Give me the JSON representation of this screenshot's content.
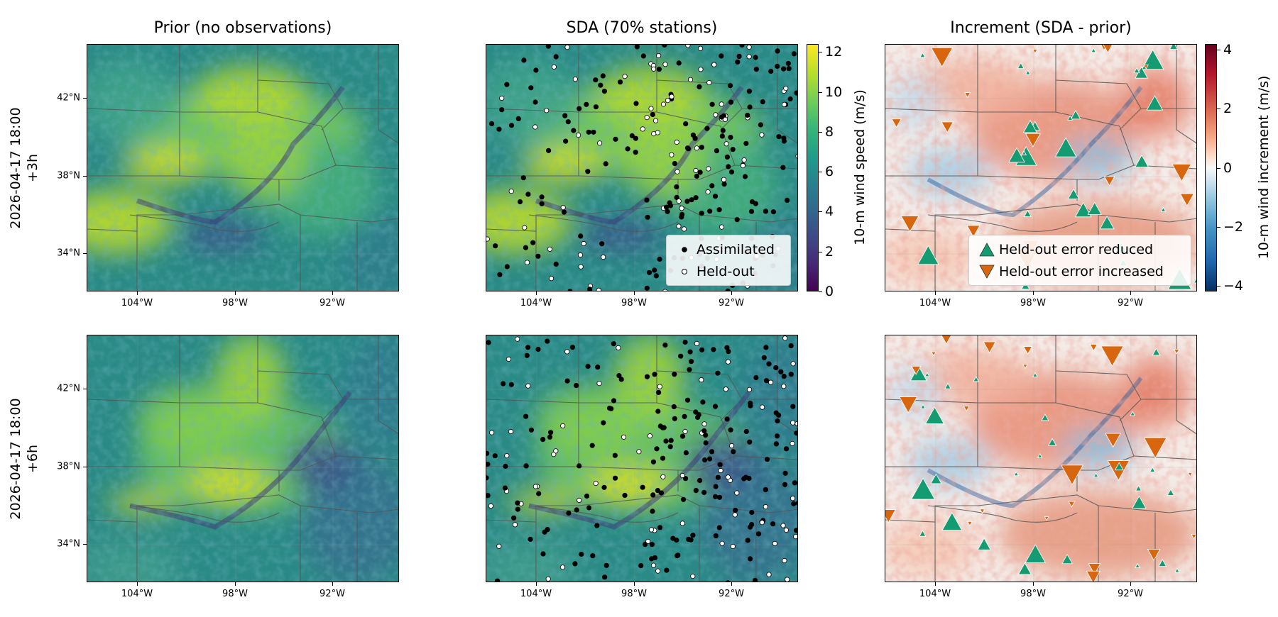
{
  "columns": [
    {
      "title": "Prior (no observations)"
    },
    {
      "title": "SDA (70% stations)"
    },
    {
      "title": "Increment (SDA - prior)"
    }
  ],
  "rows": [
    {
      "line1": "2026-04-17 18:00",
      "line2": "+3h"
    },
    {
      "line1": "2026-04-17 18:00",
      "line2": "+6h"
    }
  ],
  "axes": {
    "lat_ticks": [
      "42°N",
      "38°N",
      "34°N"
    ],
    "lon_ticks": [
      "104°W",
      "98°W",
      "92°W"
    ]
  },
  "colorbars": {
    "speed": {
      "label": "10-m wind speed (m/s)",
      "ticks": [
        "0",
        "2",
        "4",
        "6",
        "8",
        "10",
        "12"
      ],
      "range": [
        0,
        12.4
      ],
      "colormap": "viridis",
      "colors": [
        "#440154",
        "#3b528b",
        "#21918c",
        "#5ec962",
        "#fde725"
      ]
    },
    "increment": {
      "label": "10-m wind increment (m/s)",
      "ticks": [
        "4",
        "2",
        "0",
        "−2",
        "−4"
      ],
      "range": [
        -4.2,
        4.2
      ],
      "colormap": "RdBu_r",
      "colors": [
        "#67001f",
        "#d6604d",
        "#f7f7f7",
        "#4393c3",
        "#053061"
      ]
    }
  },
  "legends": {
    "stations": {
      "assimilated": "Assimilated",
      "held_out": "Held-out"
    },
    "errors": {
      "reduced": "Held-out error reduced",
      "increased": "Held-out error increased"
    }
  },
  "marker_colors": {
    "assimilated": "#000000",
    "held_out": "#ffffff",
    "reduced": "#149b72",
    "increased": "#d8660f"
  },
  "chart_data": [
    {
      "type": "heatmap",
      "title": "Prior (no observations)",
      "row": "2026-04-17 18:00 +3h",
      "variable": "10-m wind speed (m/s)",
      "range": [
        0,
        12.4
      ],
      "lat_ticks": [
        "42°N",
        "38°N",
        "34°N"
      ],
      "lon_ticks": [
        "104°W",
        "98°W",
        "92°W"
      ]
    },
    {
      "type": "heatmap",
      "title": "SDA (70% stations)",
      "row": "2026-04-17 18:00 +3h",
      "variable": "10-m wind speed (m/s)",
      "range": [
        0,
        12.4
      ],
      "overlay": "scatter",
      "series": [
        {
          "name": "Assimilated"
        },
        {
          "name": "Held-out"
        }
      ]
    },
    {
      "type": "heatmap",
      "title": "Increment (SDA - prior)",
      "row": "2026-04-17 18:00 +3h",
      "variable": "10-m wind increment (m/s)",
      "range": [
        -4.2,
        4.2
      ],
      "overlay": "scatter",
      "series": [
        {
          "name": "Held-out error reduced"
        },
        {
          "name": "Held-out error increased"
        }
      ]
    },
    {
      "type": "heatmap",
      "row": "2026-04-17 18:00 +6h",
      "variable": "10-m wind speed (m/s)",
      "range": [
        0,
        12.4
      ]
    },
    {
      "type": "heatmap",
      "row": "2026-04-17 18:00 +6h",
      "variable": "10-m wind speed (m/s)",
      "range": [
        0,
        12.4
      ],
      "overlay": "scatter"
    },
    {
      "type": "heatmap",
      "row": "2026-04-17 18:00 +6h",
      "variable": "10-m wind increment (m/s)",
      "range": [
        -4.2,
        4.2
      ],
      "overlay": "scatter"
    }
  ]
}
